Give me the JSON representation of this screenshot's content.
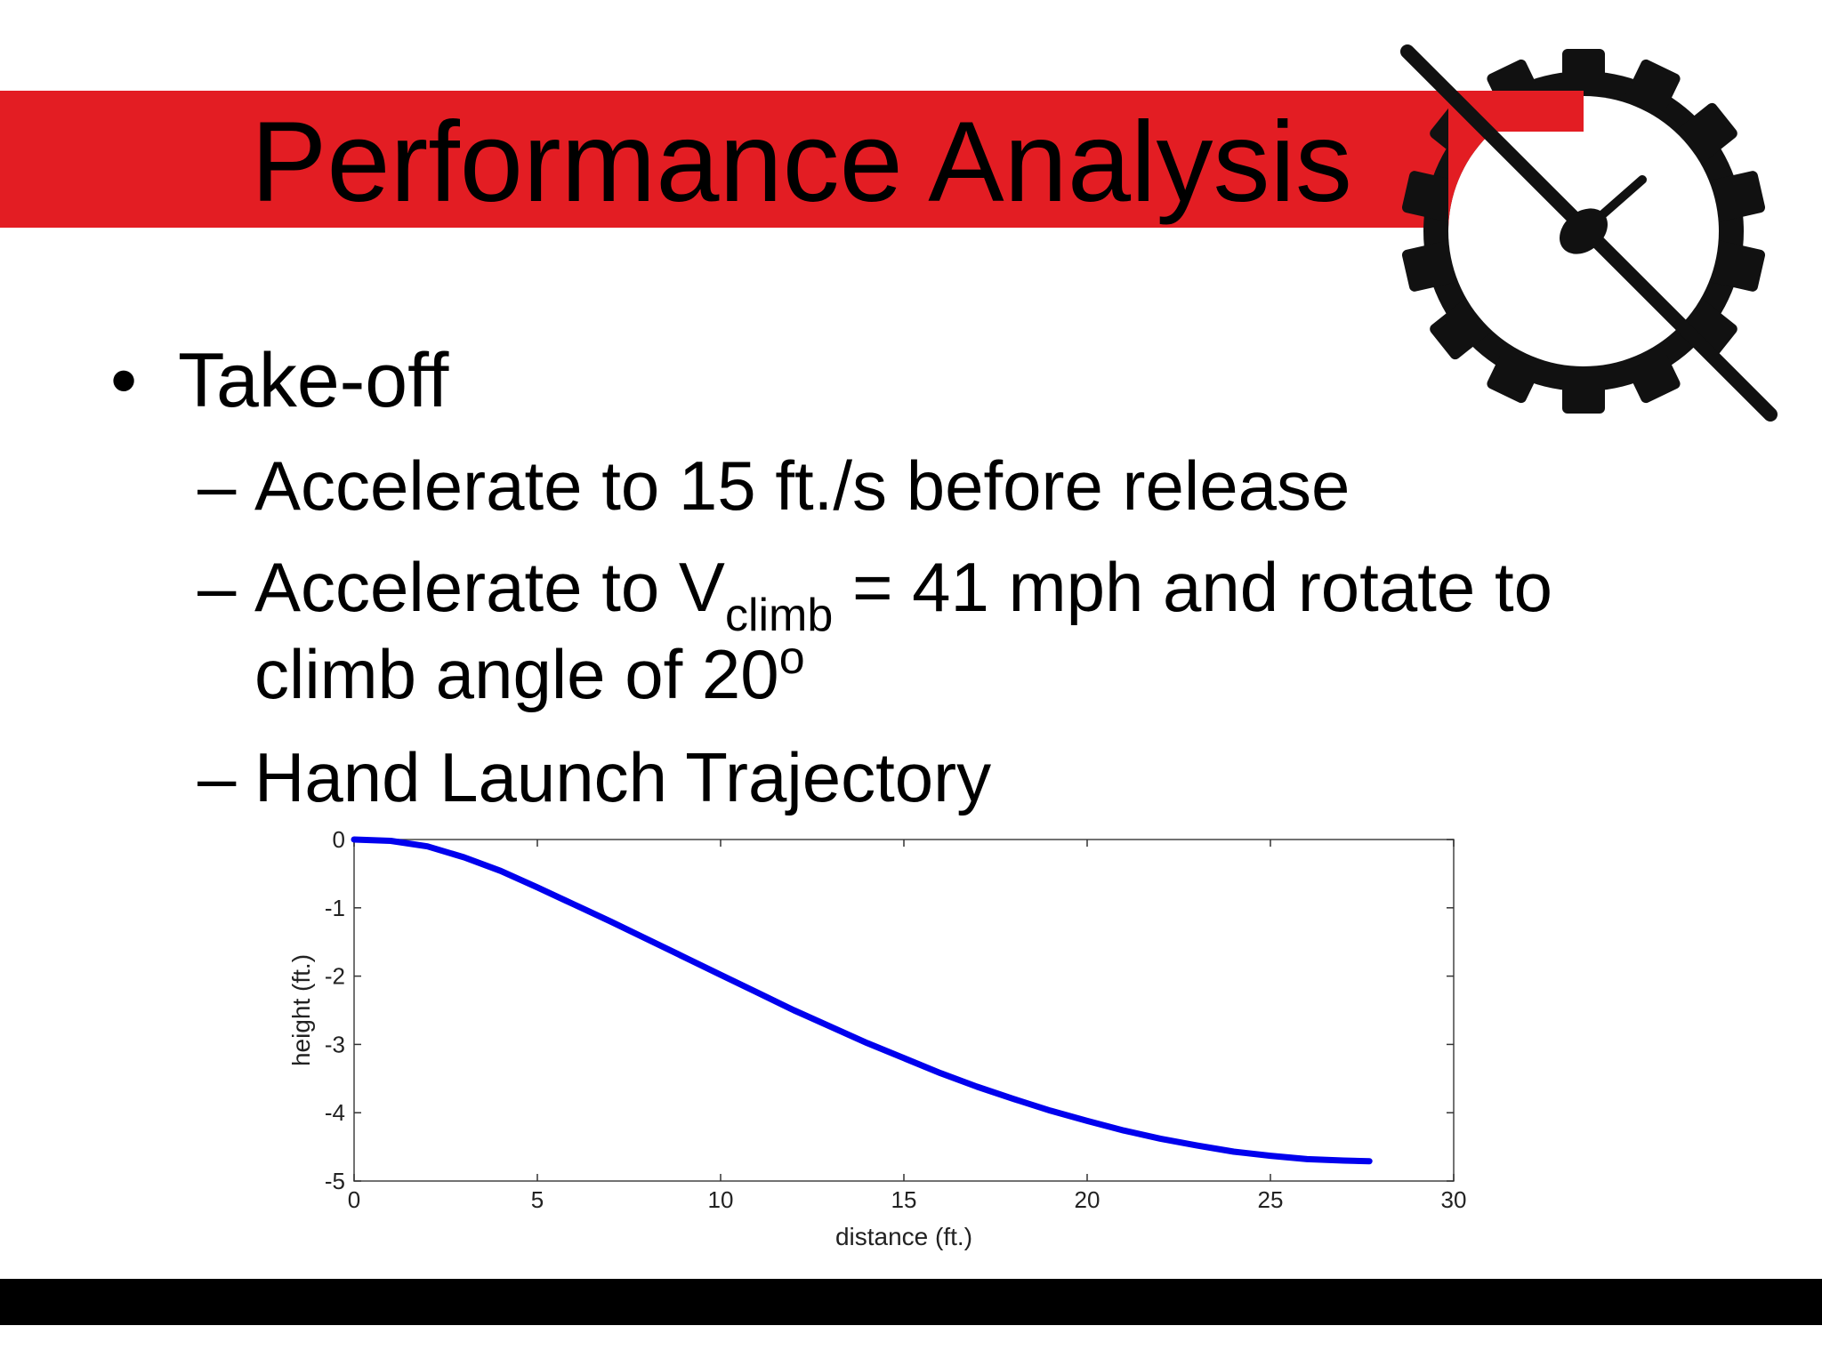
{
  "slide": {
    "title": "Performance Analysis",
    "accent_color": "#e31d23",
    "logo_icon": "gear-propeller-logo-icon"
  },
  "bullets": {
    "level1": {
      "marker": "•",
      "text": "Take-off"
    },
    "level2": [
      {
        "marker": "–",
        "text": "Accelerate to 15 ft./s before release"
      },
      {
        "marker": "–",
        "pre": "Accelerate to V",
        "subscript": "climb",
        "post": " = 41 mph and rotate to",
        "line2_pre": "climb angle of 20",
        "superscript": "o"
      },
      {
        "marker": "–",
        "text": "Hand Launch Trajectory"
      }
    ]
  },
  "chart_data": {
    "type": "line",
    "title": "",
    "xlabel": "distance (ft.)",
    "ylabel": "height (ft.)",
    "xlim": [
      0,
      30
    ],
    "ylim": [
      -5,
      0
    ],
    "xticks": [
      0,
      5,
      10,
      15,
      20,
      25,
      30
    ],
    "yticks": [
      0,
      -1,
      -2,
      -3,
      -4,
      -5
    ],
    "grid": false,
    "series": [
      {
        "color": "#0000ee",
        "x": [
          0,
          1,
          2,
          3,
          4,
          5,
          6,
          7,
          8,
          9,
          10,
          11,
          12,
          13,
          14,
          15,
          16,
          17,
          18,
          19,
          20,
          21,
          22,
          23,
          24,
          25,
          26,
          27,
          27.7
        ],
        "y": [
          0,
          -0.02,
          -0.1,
          -0.26,
          -0.46,
          -0.7,
          -0.95,
          -1.2,
          -1.46,
          -1.72,
          -1.98,
          -2.24,
          -2.5,
          -2.74,
          -2.98,
          -3.2,
          -3.42,
          -3.62,
          -3.8,
          -3.97,
          -4.12,
          -4.26,
          -4.38,
          -4.48,
          -4.57,
          -4.63,
          -4.68,
          -4.7,
          -4.71
        ]
      }
    ]
  }
}
